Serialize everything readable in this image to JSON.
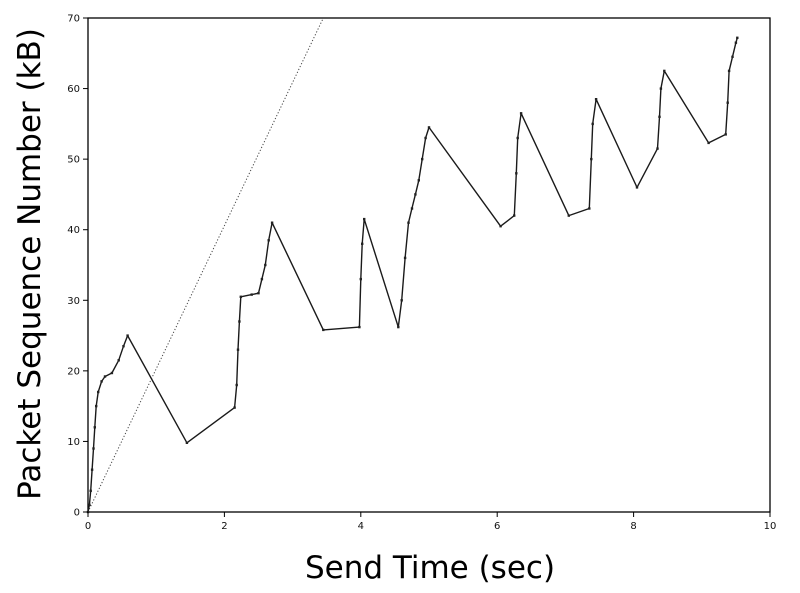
{
  "chart_data": {
    "type": "line",
    "title": "",
    "xlabel": "Send Time (sec)",
    "ylabel": "Packet Sequence Number (kB)",
    "xlim": [
      0,
      10
    ],
    "ylim": [
      0,
      70
    ],
    "xticks": [
      "0",
      "2",
      "4",
      "6",
      "8",
      "10"
    ],
    "yticks": [
      "0",
      "10",
      "20",
      "30",
      "40",
      "50",
      "60",
      "70"
    ],
    "grid": false,
    "legend": "none",
    "series": [
      {
        "points": [
          [
            0.0,
            0
          ],
          [
            0.02,
            1
          ],
          [
            0.04,
            3
          ],
          [
            0.06,
            6
          ],
          [
            0.08,
            9
          ],
          [
            0.1,
            12
          ],
          [
            0.12,
            15
          ],
          [
            0.15,
            17
          ],
          [
            0.2,
            18.5
          ],
          [
            0.25,
            19.2
          ],
          [
            0.35,
            19.7
          ],
          [
            0.45,
            21.5
          ],
          [
            0.52,
            23.5
          ],
          [
            0.58,
            25
          ],
          [
            1.45,
            9.8
          ],
          [
            2.15,
            14.8
          ],
          [
            2.18,
            18
          ],
          [
            2.2,
            23
          ],
          [
            2.22,
            27
          ],
          [
            2.24,
            30.5
          ],
          [
            2.4,
            30.8
          ],
          [
            2.5,
            31
          ],
          [
            2.55,
            33
          ],
          [
            2.6,
            35
          ],
          [
            2.65,
            38.5
          ],
          [
            2.7,
            41
          ],
          [
            3.45,
            25.8
          ],
          [
            3.98,
            26.2
          ],
          [
            4.0,
            33
          ],
          [
            4.02,
            38
          ],
          [
            4.05,
            41.5
          ],
          [
            4.55,
            26.2
          ],
          [
            4.6,
            30
          ],
          [
            4.65,
            36
          ],
          [
            4.7,
            41
          ],
          [
            4.75,
            43
          ],
          [
            4.8,
            45
          ],
          [
            4.85,
            47
          ],
          [
            4.9,
            50
          ],
          [
            4.95,
            53
          ],
          [
            5.0,
            54.5
          ],
          [
            6.05,
            40.5
          ],
          [
            6.25,
            42
          ],
          [
            6.28,
            48
          ],
          [
            6.3,
            53
          ],
          [
            6.35,
            56.5
          ],
          [
            7.05,
            42
          ],
          [
            7.35,
            43
          ],
          [
            7.38,
            50
          ],
          [
            7.4,
            55
          ],
          [
            7.45,
            58.5
          ],
          [
            8.05,
            46
          ],
          [
            8.35,
            51.5
          ],
          [
            8.38,
            56
          ],
          [
            8.4,
            60
          ],
          [
            8.45,
            62.5
          ],
          [
            9.1,
            52.3
          ],
          [
            9.35,
            53.5
          ],
          [
            9.38,
            58
          ],
          [
            9.4,
            62.5
          ],
          [
            9.45,
            64.5
          ],
          [
            9.5,
            66.5
          ],
          [
            9.52,
            67.2
          ]
        ]
      },
      {
        "style": "dotted",
        "points": [
          [
            0,
            0
          ],
          [
            3.45,
            70
          ]
        ]
      }
    ]
  }
}
